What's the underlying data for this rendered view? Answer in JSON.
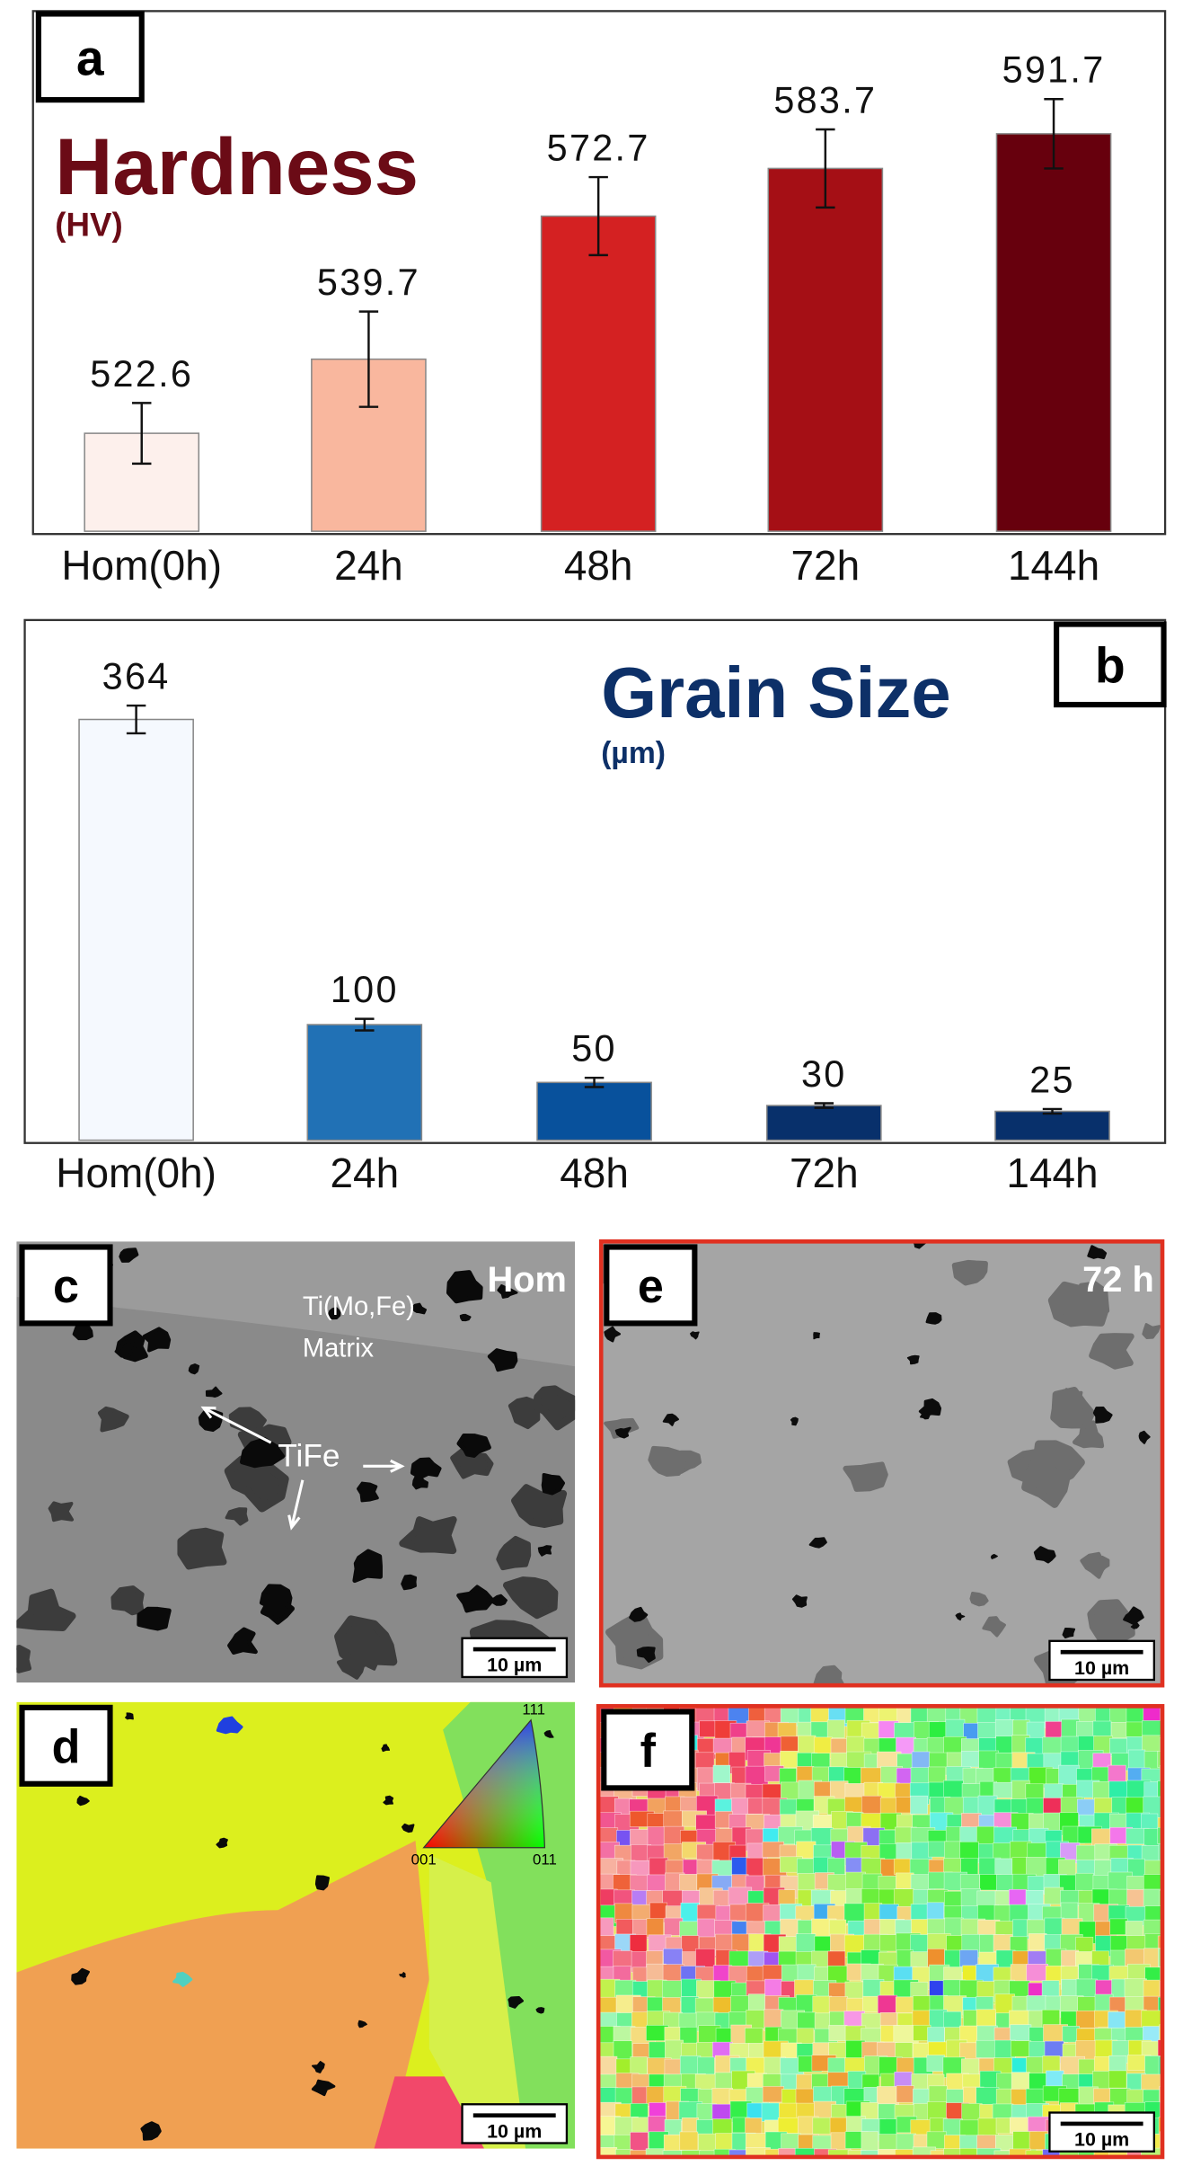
{
  "chart_data": [
    {
      "type": "bar",
      "panel_label": "a",
      "title": "Hardness",
      "subtitle": "(HV)",
      "categories": [
        "Hom(0h)",
        "24h",
        "48h",
        "72h",
        "144h"
      ],
      "values": [
        522.6,
        539.7,
        572.7,
        583.7,
        591.7
      ],
      "errors": [
        7,
        11,
        9,
        9,
        8
      ],
      "colors": [
        "#fdf0ec",
        "#f9b79e",
        "#d42122",
        "#a50f15",
        "#67000d"
      ],
      "ylim": [
        500,
        620
      ]
    },
    {
      "type": "bar",
      "panel_label": "b",
      "title": "Grain Size",
      "subtitle": "(µm)",
      "categories": [
        "Hom(0h)",
        "24h",
        "48h",
        "72h",
        "144h"
      ],
      "values": [
        364,
        100,
        50,
        30,
        25
      ],
      "errors": [
        12,
        5,
        4,
        2,
        2
      ],
      "colors": [
        "#f5f9fe",
        "#2171b5",
        "#08519c",
        "#08306b",
        "#08306b"
      ],
      "ylim": [
        0,
        450
      ]
    }
  ],
  "panels": [
    {
      "label": "c",
      "note": "Hom",
      "annotations": [
        "Ti(Mo,Fe)",
        "Matrix",
        "TiFe"
      ],
      "scale_bar": "10 µm"
    },
    {
      "label": "d",
      "legend": [
        "111",
        "001",
        "011"
      ],
      "scale_bar": "10 µm"
    },
    {
      "label": "e",
      "note": "72 h",
      "scale_bar": "10 µm"
    },
    {
      "label": "f",
      "scale_bar": "10 µm"
    }
  ]
}
